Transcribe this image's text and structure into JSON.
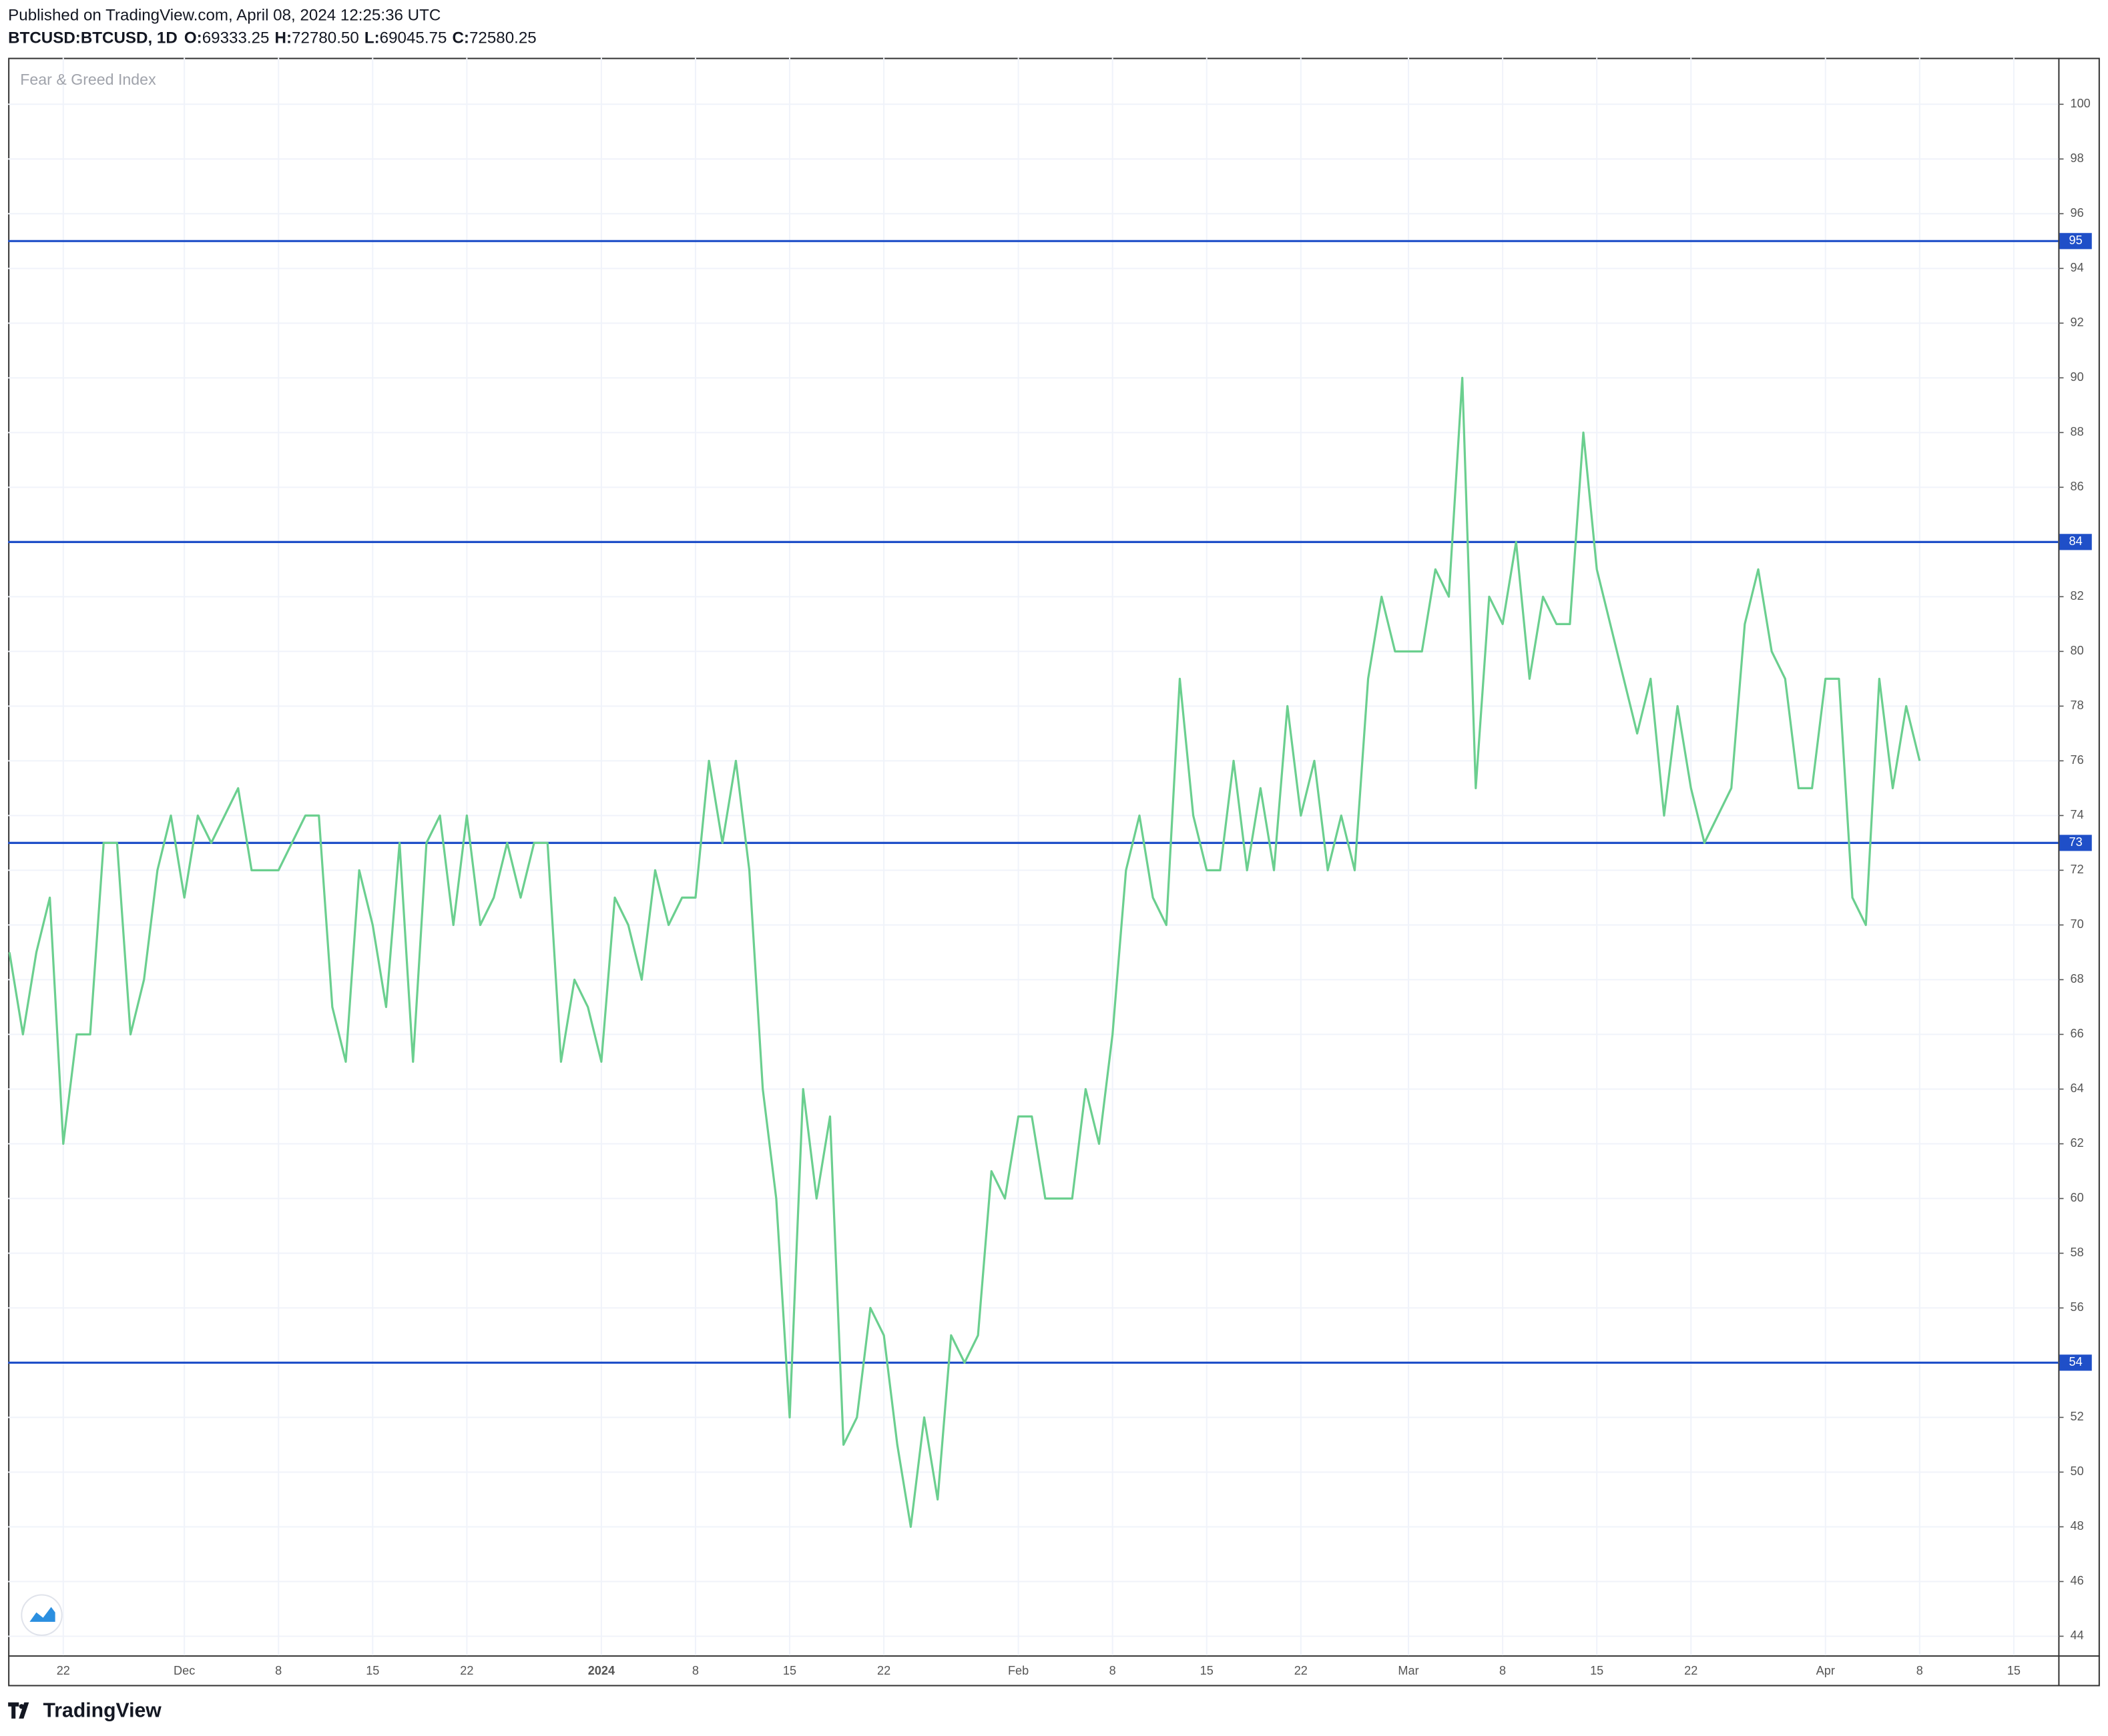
{
  "header": {
    "published": "Published on TradingView.com, April 08, 2024 12:25:36 UTC",
    "symbol": "BTCUSD:BTCUSD, 1D",
    "ohlc": [
      {
        "label": "O:",
        "value": "69333.25"
      },
      {
        "label": "H:",
        "value": "72780.50"
      },
      {
        "label": "L:",
        "value": "69045.75"
      },
      {
        "label": "C:",
        "value": "72580.25"
      }
    ]
  },
  "chart_data": {
    "type": "line",
    "series": [
      {
        "name": "Fear & Greed Index",
        "color": "#6bcf8f",
        "values": [
          69,
          66,
          69,
          71,
          62,
          66,
          66,
          73,
          73,
          66,
          68,
          72,
          74,
          71,
          74,
          73,
          74,
          75,
          72,
          72,
          72,
          73,
          74,
          74,
          67,
          65,
          72,
          70,
          67,
          73,
          65,
          73,
          74,
          70,
          74,
          70,
          71,
          73,
          71,
          73,
          73,
          65,
          68,
          67,
          65,
          71,
          70,
          68,
          72,
          70,
          71,
          71,
          76,
          73,
          76,
          72,
          64,
          60,
          52,
          64,
          60,
          63,
          51,
          52,
          56,
          55,
          51,
          48,
          52,
          49,
          55,
          54,
          55,
          61,
          60,
          63,
          63,
          60,
          60,
          60,
          64,
          62,
          66,
          72,
          74,
          71,
          70,
          79,
          74,
          72,
          72,
          76,
          72,
          75,
          72,
          78,
          74,
          76,
          72,
          74,
          72,
          79,
          82,
          80,
          80,
          80,
          83,
          82,
          90,
          75,
          82,
          81,
          84,
          79,
          82,
          81,
          81,
          88,
          83,
          81,
          79,
          77,
          79,
          74,
          78,
          75,
          73,
          74,
          75,
          81,
          83,
          80,
          79,
          75,
          75,
          79,
          79,
          71,
          70,
          79,
          75,
          78,
          76
        ]
      }
    ],
    "x": [
      "2023-11-18",
      "2023-11-19",
      "2023-11-20",
      "2023-11-21",
      "2023-11-22",
      "2023-11-23",
      "2023-11-24",
      "2023-11-25",
      "2023-11-26",
      "2023-11-27",
      "2023-11-28",
      "2023-11-29",
      "2023-11-30",
      "2023-12-01",
      "2023-12-02",
      "2023-12-03",
      "2023-12-04",
      "2023-12-05",
      "2023-12-06",
      "2023-12-07",
      "2023-12-08",
      "2023-12-09",
      "2023-12-10",
      "2023-12-11",
      "2023-12-12",
      "2023-12-13",
      "2023-12-14",
      "2023-12-15",
      "2023-12-16",
      "2023-12-17",
      "2023-12-18",
      "2023-12-19",
      "2023-12-20",
      "2023-12-21",
      "2023-12-22",
      "2023-12-23",
      "2023-12-24",
      "2023-12-25",
      "2023-12-26",
      "2023-12-27",
      "2023-12-28",
      "2023-12-29",
      "2023-12-30",
      "2023-12-31",
      "2024-01-01",
      "2024-01-02",
      "2024-01-03",
      "2024-01-04",
      "2024-01-05",
      "2024-01-06",
      "2024-01-07",
      "2024-01-08",
      "2024-01-09",
      "2024-01-10",
      "2024-01-11",
      "2024-01-12",
      "2024-01-13",
      "2024-01-14",
      "2024-01-15",
      "2024-01-16",
      "2024-01-17",
      "2024-01-18",
      "2024-01-19",
      "2024-01-20",
      "2024-01-21",
      "2024-01-22",
      "2024-01-23",
      "2024-01-24",
      "2024-01-25",
      "2024-01-26",
      "2024-01-27",
      "2024-01-28",
      "2024-01-29",
      "2024-01-30",
      "2024-01-31",
      "2024-02-01",
      "2024-02-02",
      "2024-02-03",
      "2024-02-04",
      "2024-02-05",
      "2024-02-06",
      "2024-02-07",
      "2024-02-08",
      "2024-02-09",
      "2024-02-10",
      "2024-02-11",
      "2024-02-12",
      "2024-02-13",
      "2024-02-14",
      "2024-02-15",
      "2024-02-16",
      "2024-02-17",
      "2024-02-18",
      "2024-02-19",
      "2024-02-20",
      "2024-02-21",
      "2024-02-22",
      "2024-02-23",
      "2024-02-24",
      "2024-02-25",
      "2024-02-26",
      "2024-02-27",
      "2024-02-28",
      "2024-02-29",
      "2024-03-01",
      "2024-03-02",
      "2024-03-03",
      "2024-03-04",
      "2024-03-05",
      "2024-03-06",
      "2024-03-07",
      "2024-03-08",
      "2024-03-09",
      "2024-03-10",
      "2024-03-11",
      "2024-03-12",
      "2024-03-13",
      "2024-03-14",
      "2024-03-15",
      "2024-03-16",
      "2024-03-17",
      "2024-03-18",
      "2024-03-19",
      "2024-03-20",
      "2024-03-21",
      "2024-03-22",
      "2024-03-23",
      "2024-03-24",
      "2024-03-25",
      "2024-03-26",
      "2024-03-27",
      "2024-03-28",
      "2024-03-29",
      "2024-03-30",
      "2024-03-31",
      "2024-04-01",
      "2024-04-02",
      "2024-04-03",
      "2024-04-04",
      "2024-04-05",
      "2024-04-06",
      "2024-04-07",
      "2024-04-08"
    ],
    "xlim": [
      "2023-11-18",
      "2024-04-18"
    ],
    "xticks": [
      {
        "value": "2023-11-22",
        "label": "22"
      },
      {
        "value": "2023-12-01",
        "label": "Dec"
      },
      {
        "value": "2023-12-08",
        "label": "8"
      },
      {
        "value": "2023-12-15",
        "label": "15"
      },
      {
        "value": "2023-12-22",
        "label": "22"
      },
      {
        "value": "2024-01-01",
        "label": "2024"
      },
      {
        "value": "2024-01-08",
        "label": "8"
      },
      {
        "value": "2024-01-15",
        "label": "15"
      },
      {
        "value": "2024-01-22",
        "label": "22"
      },
      {
        "value": "2024-02-01",
        "label": "Feb"
      },
      {
        "value": "2024-02-08",
        "label": "8"
      },
      {
        "value": "2024-02-15",
        "label": "15"
      },
      {
        "value": "2024-02-22",
        "label": "22"
      },
      {
        "value": "2024-03-01",
        "label": "Mar"
      },
      {
        "value": "2024-03-08",
        "label": "8"
      },
      {
        "value": "2024-03-15",
        "label": "15"
      },
      {
        "value": "2024-03-22",
        "label": "22"
      },
      {
        "value": "2024-04-01",
        "label": "Apr"
      },
      {
        "value": "2024-04-08",
        "label": "8"
      },
      {
        "value": "2024-04-15",
        "label": "15"
      }
    ],
    "ylim": [
      43.3,
      101.7
    ],
    "yticks": [
      44,
      46,
      48,
      50,
      52,
      54,
      56,
      58,
      60,
      62,
      64,
      66,
      68,
      70,
      72,
      74,
      76,
      78,
      80,
      82,
      84,
      86,
      88,
      90,
      92,
      94,
      96,
      98,
      100
    ],
    "grid": true,
    "hlines": [
      95,
      84,
      73,
      54
    ],
    "hline_color": "#1f4fc8"
  },
  "footer": {
    "brand": "TradingView"
  }
}
